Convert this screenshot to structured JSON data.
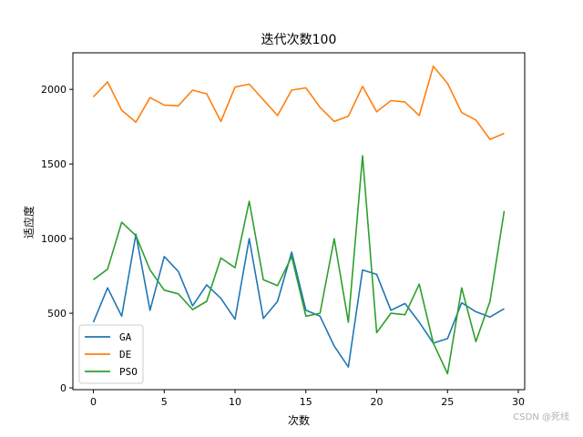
{
  "chart_data": {
    "type": "line",
    "title": "迭代次数100",
    "xlabel": "次数",
    "ylabel": "适应度",
    "xlim": [
      -1.45,
      30.45
    ],
    "ylim": [
      -12,
      2245
    ],
    "xticks": [
      0,
      5,
      10,
      15,
      20,
      25,
      30
    ],
    "yticks": [
      0,
      500,
      1000,
      1500,
      2000
    ],
    "grid": false,
    "legend_position": "lower left",
    "x": [
      0,
      1,
      2,
      3,
      4,
      5,
      6,
      7,
      8,
      9,
      10,
      11,
      12,
      13,
      14,
      15,
      16,
      17,
      18,
      19,
      20,
      21,
      22,
      23,
      24,
      25,
      26,
      27,
      28,
      29
    ],
    "series": [
      {
        "name": "GA",
        "color": "#1f77b4",
        "values": [
          440,
          670,
          480,
          1030,
          520,
          880,
          780,
          550,
          690,
          600,
          460,
          1000,
          465,
          580,
          910,
          520,
          480,
          280,
          140,
          790,
          760,
          520,
          565,
          440,
          300,
          330,
          570,
          510,
          475,
          530
        ]
      },
      {
        "name": "DE",
        "color": "#ff7f0e",
        "values": [
          1950,
          2050,
          1860,
          1780,
          1945,
          1895,
          1890,
          1995,
          1970,
          1785,
          2015,
          2035,
          1930,
          1825,
          1995,
          2010,
          1880,
          1785,
          1820,
          2020,
          1850,
          1925,
          1915,
          1825,
          2155,
          2040,
          1845,
          1795,
          1665,
          1705
        ]
      },
      {
        "name": "PSO",
        "color": "#2ca02c",
        "values": [
          725,
          795,
          1110,
          1020,
          790,
          655,
          630,
          525,
          580,
          870,
          805,
          1250,
          725,
          685,
          880,
          480,
          500,
          1000,
          440,
          1555,
          370,
          500,
          490,
          695,
          300,
          95,
          670,
          310,
          580,
          1185
        ]
      }
    ]
  },
  "watermark": "CSDN @死线"
}
